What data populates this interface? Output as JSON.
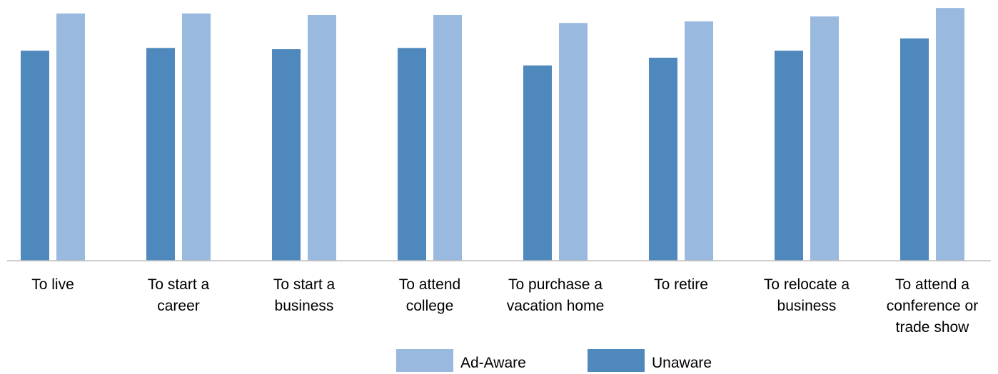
{
  "chart_data": {
    "type": "bar",
    "categories": [
      [
        "To live"
      ],
      [
        "To start a",
        "career"
      ],
      [
        "To start a",
        "business"
      ],
      [
        "To attend",
        "college"
      ],
      [
        "To purchase a",
        "vacation home"
      ],
      [
        "To retire"
      ],
      [
        "To relocate a",
        "business"
      ],
      [
        "To attend a",
        "conference or",
        "trade show"
      ]
    ],
    "series": [
      {
        "name": "Unaware",
        "color": "#4f88bc",
        "values": [
          84.0,
          85.1,
          84.6,
          85.1,
          78.1,
          81.2,
          84.0,
          88.9
        ]
      },
      {
        "name": "Ad-Aware",
        "color": "#9ab9df",
        "values": [
          98.9,
          98.9,
          98.3,
          98.3,
          95.1,
          95.7,
          97.7,
          101.1
        ]
      }
    ],
    "legend_order": [
      "Ad-Aware",
      "Unaware"
    ],
    "ylim": [
      0,
      102
    ],
    "grid": false,
    "legend_position": "bottom"
  }
}
